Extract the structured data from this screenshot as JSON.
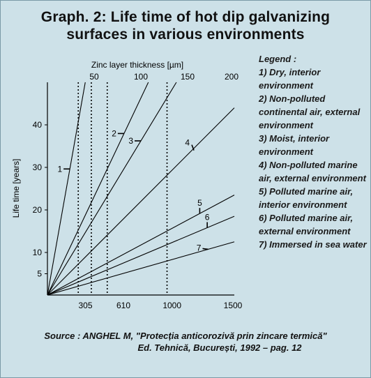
{
  "title_line1": "Graph. 2: Life time of hot dip galvanizing",
  "title_line2": "surfaces in various environments",
  "legend": {
    "title": "Legend :",
    "items": [
      "1) Dry, interior environment",
      "2) Non-polluted continental air, external environment",
      "3) Moist, interior environment",
      "4) Non-polluted marine air, external environment",
      "5) Polluted marine air, interior environment",
      "6) Polluted marine air, external environment",
      "7) Immersed in sea water"
    ]
  },
  "source_line1": "Source : ANGHEL M, \"Protecția anticorozivă prin zincare termică\"",
  "source_line2": "Ed. Tehnică, București, 1992 – pag. 12",
  "colors": {
    "background": "#cde1e8",
    "lines": "#000000"
  },
  "chart_data": {
    "type": "line",
    "ylabel": "Life time [years]",
    "top_axis_label": "Zinc layer thickness [µm]",
    "top_axis_ticks": [
      "50",
      "100",
      "150",
      "200"
    ],
    "top_axis_values": [
      50,
      100,
      150,
      200
    ],
    "bottom_axis_ticks": [
      "305",
      "610",
      "1000",
      "1500"
    ],
    "bottom_axis_values": [
      305,
      610,
      1000,
      1500
    ],
    "y_ticks": [
      "5",
      "10",
      "20",
      "30",
      "40"
    ],
    "y_values": [
      5,
      10,
      20,
      30,
      40
    ],
    "xlim_um": [
      0,
      200
    ],
    "ylim": [
      0,
      50
    ],
    "dotted_verticals_um": [
      33,
      47,
      64,
      128
    ],
    "series": [
      {
        "label": "1",
        "x_um": [
          0,
          40.5
        ],
        "y": [
          0,
          50
        ],
        "label_at_um": 24
      },
      {
        "label": "2",
        "x_um": [
          0,
          108
        ],
        "y": [
          0,
          50
        ],
        "label_at_um": 82
      },
      {
        "label": "3",
        "x_um": [
          0,
          138
        ],
        "y": [
          0,
          50
        ],
        "label_at_um": 100
      },
      {
        "label": "4",
        "x_um": [
          0,
          200
        ],
        "y": [
          0,
          44
        ],
        "label_at_um": 156
      },
      {
        "label": "5",
        "x_um": [
          0,
          200
        ],
        "y": [
          0,
          23.5
        ],
        "label_at_um": 163
      },
      {
        "label": "6",
        "x_um": [
          0,
          200
        ],
        "y": [
          0,
          18.5
        ],
        "label_at_um": 171
      },
      {
        "label": "7",
        "x_um": [
          0,
          200
        ],
        "y": [
          0,
          12.5
        ],
        "label_at_um": 172
      }
    ]
  }
}
